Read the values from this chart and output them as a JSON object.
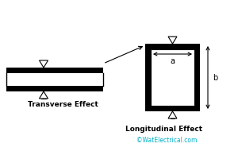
{
  "bg_color": "#ffffff",
  "text_color": "#000000",
  "cyan_color": "#00b0c8",
  "transverse_label": "Transverse Effect",
  "longitudinal_label": "Longitudinal Effect",
  "watermark": "©WatElectrical.com",
  "label_a": "a",
  "label_b": "b"
}
